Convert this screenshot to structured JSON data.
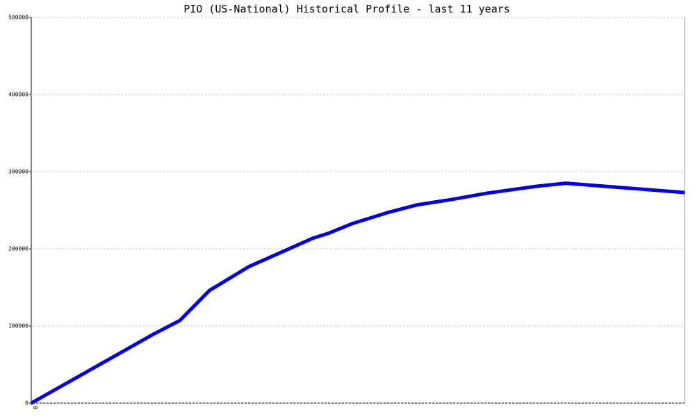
{
  "chart_data": {
    "type": "line",
    "title": "PIO (US-National) Historical Profile - last 11 years",
    "x": [
      0,
      24.6,
      30,
      36,
      44,
      57,
      60,
      65,
      72,
      78,
      85,
      92,
      102,
      108,
      132
    ],
    "series": [
      {
        "color": "#0000ee",
        "values": [
          0,
          89000,
          107000,
          146000,
          177000,
          214000,
          220000,
          233000,
          247000,
          257000,
          264000,
          272000,
          281000,
          285000,
          273000
        ]
      }
    ],
    "xlim": [
      0,
      132
    ],
    "xticks": [
      0
    ],
    "ylim": [
      0,
      500000
    ],
    "yticks": [
      0,
      100000,
      200000,
      300000,
      400000,
      500000
    ],
    "grid": true
  }
}
